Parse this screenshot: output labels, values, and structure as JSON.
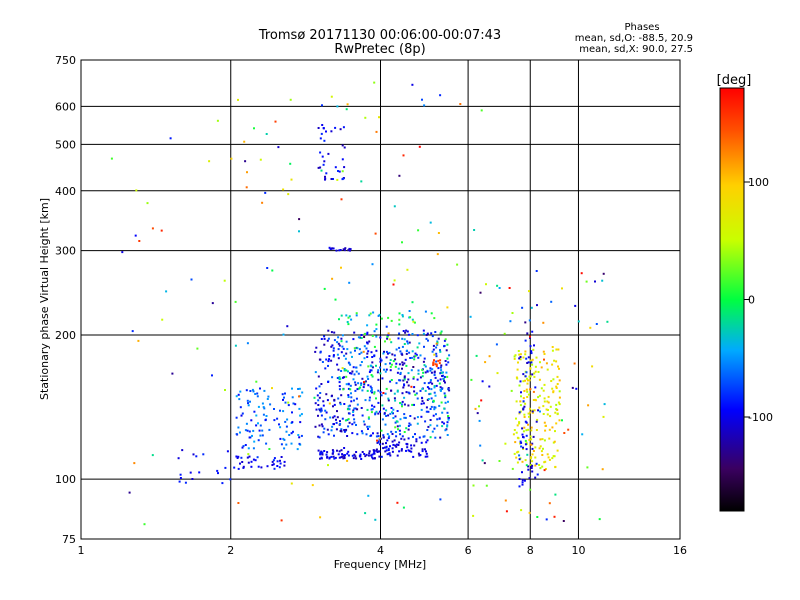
{
  "header": {
    "title_line1": "Tromsø 20171130 00:06:00-00:07:43",
    "title_line2": "RwPretec (8p)",
    "phases_title": "Phases",
    "phases_o": "mean, sd,O: -88.5, 20.9",
    "phases_x": "mean, sd,X:  90.0, 27.5"
  },
  "colorbar": {
    "label": "[deg]",
    "range": [
      -180,
      180
    ],
    "ticks": [
      100,
      0,
      -100
    ],
    "tick_labels": [
      "100",
      "0",
      "-100"
    ]
  },
  "chart_data": {
    "type": "scatter",
    "xlabel": "Frequency [MHz]",
    "ylabel": "Stationary phase Virtual Height [km]",
    "xscale": "log2",
    "yscale": "log",
    "xlim": [
      1,
      16
    ],
    "ylim": [
      75,
      750
    ],
    "xticks": [
      1,
      2,
      4,
      6,
      8,
      10,
      16
    ],
    "xtick_labels": [
      "1",
      "2",
      "4",
      "6",
      "8",
      "10",
      "16"
    ],
    "xgrid": [
      2,
      4,
      6,
      8,
      10
    ],
    "yticks": [
      75,
      100,
      200,
      300,
      400,
      500,
      600,
      750
    ],
    "ytick_labels": [
      "75",
      "100",
      "200",
      "300",
      "400",
      "500",
      "600",
      "750"
    ],
    "grid": true,
    "point_color": "phase",
    "clusters": [
      {
        "f": [
          1.5,
          2.0
        ],
        "h": [
          97,
          115
        ],
        "n": 18,
        "phase": [
          -110,
          -80
        ]
      },
      {
        "f": [
          2.02,
          2.6
        ],
        "h": [
          105,
          112
        ],
        "n": 35,
        "phase": [
          -110,
          -75
        ]
      },
      {
        "f": [
          2.05,
          2.8
        ],
        "h": [
          115,
          155
        ],
        "n": 110,
        "phase": [
          -100,
          -40
        ]
      },
      {
        "f": [
          3.0,
          3.9
        ],
        "h": [
          110,
          115
        ],
        "n": 70,
        "phase": [
          -120,
          -85
        ]
      },
      {
        "f": [
          3.9,
          5.0
        ],
        "h": [
          111,
          122
        ],
        "n": 75,
        "phase": [
          -120,
          -85
        ]
      },
      {
        "f": [
          2.95,
          5.5
        ],
        "h": [
          122,
          205
        ],
        "n": 520,
        "phase": [
          -125,
          -50
        ]
      },
      {
        "f": [
          3.3,
          5.5
        ],
        "h": [
          125,
          225
        ],
        "n": 180,
        "phase": [
          -60,
          20
        ]
      },
      {
        "f": [
          5.1,
          5.3
        ],
        "h": [
          172,
          178
        ],
        "n": 10,
        "phase": [
          150,
          155
        ]
      },
      {
        "f": [
          3.0,
          3.4
        ],
        "h": [
          420,
          550
        ],
        "n": 35,
        "phase": [
          -120,
          -80
        ]
      },
      {
        "f": [
          3.1,
          3.5
        ],
        "h": [
          300,
          305
        ],
        "n": 18,
        "phase": [
          -120,
          -90
        ]
      },
      {
        "f": [
          7.4,
          9.2
        ],
        "h": [
          105,
          190
        ],
        "n": 200,
        "phase": [
          40,
          110
        ]
      },
      {
        "f": [
          7.6,
          8.3
        ],
        "h": [
          95,
          205
        ],
        "n": 60,
        "phase": [
          -120,
          -80
        ]
      },
      {
        "f": [
          6.0,
          11.5
        ],
        "h": [
          80,
          280
        ],
        "n": 90,
        "phase": [
          -150,
          180
        ]
      },
      {
        "f": [
          1.15,
          2.2
        ],
        "h": [
          80,
          620
        ],
        "n": 30,
        "phase": [
          -150,
          180
        ]
      },
      {
        "f": [
          2.0,
          6.5
        ],
        "h": [
          80,
          680
        ],
        "n": 110,
        "phase": [
          -150,
          180
        ]
      }
    ]
  }
}
